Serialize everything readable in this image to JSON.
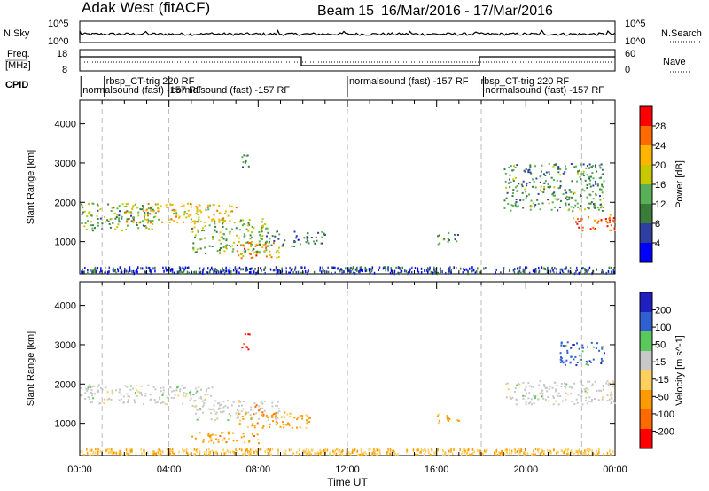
{
  "header": {
    "title": "Adak West (fitACF)",
    "beam": "Beam 15",
    "date_range": "16/Mar/2016 - 17/Mar/2016"
  },
  "nsky_panel": {
    "left_label": "N.Sky",
    "right_label": "N.Search",
    "left_ticks": [
      "10^5",
      "10^0"
    ],
    "right_ticks": [
      "10^5",
      "10^0"
    ]
  },
  "freq_panel": {
    "left_label_line1": "Freq.",
    "left_label_line2": "[MHz]",
    "left_ticks": [
      "18",
      "8"
    ],
    "right_label": "Nave",
    "right_ticks": [
      "60",
      "0"
    ]
  },
  "cpid": {
    "label": "CPID",
    "segments": [
      {
        "text": "rbsp_CT-trig 220 RF",
        "row": 1,
        "start_h": 1.1
      },
      {
        "text": "normalsound (fast) -157 RF",
        "row": 2,
        "start_h": 0.05
      },
      {
        "text": "normalsound (fast) -157 RF",
        "row": 2,
        "start_h": 4.0
      },
      {
        "text": "normalsound (fast) -157 RF",
        "row": 1,
        "start_h": 12.0
      },
      {
        "text": "rbsp_CT-trig 220 RF",
        "row": 1,
        "start_h": 17.9
      },
      {
        "text": "normalsound (fast) -157 RF",
        "row": 2,
        "start_h": 18.1
      }
    ]
  },
  "chart_data": [
    {
      "type": "heatmap",
      "name": "power",
      "xlabel": "Time UT",
      "ylabel": "Slant Range [km]",
      "xlim": [
        0,
        24
      ],
      "ylim": [
        180,
        4600
      ],
      "x_ticks": [
        "00:00",
        "04:00",
        "08:00",
        "12:00",
        "16:00",
        "20:00",
        "00:00"
      ],
      "y_ticks": [
        1000,
        2000,
        3000,
        4000
      ],
      "colorbar": {
        "label": "Power [dB]",
        "ticks": [
          4,
          8,
          12,
          16,
          20,
          24,
          28
        ],
        "range": [
          0,
          30
        ],
        "colors": [
          "#0000ff",
          "#2e3fa0",
          "#3a7d3a",
          "#58b058",
          "#c8c800",
          "#ffb400",
          "#ff6a00",
          "#ff0000"
        ]
      },
      "echo_regions": [
        {
          "t0": 0.0,
          "t1": 3.5,
          "r0": 1300,
          "r1": 2000,
          "power": 12
        },
        {
          "t0": 2.0,
          "t1": 7.0,
          "r0": 1500,
          "r1": 2000,
          "power": 20
        },
        {
          "t0": 5.0,
          "t1": 8.5,
          "r0": 700,
          "r1": 1600,
          "power": 14
        },
        {
          "t0": 7.0,
          "t1": 9.0,
          "r0": 600,
          "r1": 1000,
          "power": 22
        },
        {
          "t0": 8.0,
          "t1": 11.0,
          "r0": 900,
          "r1": 1300,
          "power": 8
        },
        {
          "t0": 7.2,
          "t1": 7.6,
          "r0": 2800,
          "r1": 3300,
          "power": 8
        },
        {
          "t0": 16.0,
          "t1": 17.0,
          "r0": 950,
          "r1": 1250,
          "power": 10
        },
        {
          "t0": 19.0,
          "t1": 23.5,
          "r0": 1800,
          "r1": 3000,
          "power": 10
        },
        {
          "t0": 22.0,
          "t1": 24.0,
          "r0": 1300,
          "r1": 1700,
          "power": 26
        }
      ]
    },
    {
      "type": "heatmap",
      "name": "velocity",
      "xlabel": "Time UT",
      "ylabel": "Slant Range [km]",
      "xlim": [
        0,
        24
      ],
      "ylim": [
        180,
        4600
      ],
      "x_ticks": [
        "00:00",
        "04:00",
        "08:00",
        "12:00",
        "16:00",
        "20:00",
        "00:00"
      ],
      "y_ticks": [
        1000,
        2000,
        3000,
        4000
      ],
      "colorbar": {
        "label": "Velocity [m s^-1]",
        "ticks": [
          "-200",
          "-100",
          "-50",
          "-15",
          "15",
          "50",
          "100",
          "200"
        ],
        "colors": [
          "#ff0000",
          "#ff6a00",
          "#ff9a00",
          "#ffd060",
          "#c8c8c8",
          "#5ac85a",
          "#3060d0",
          "#2020c0"
        ]
      },
      "echo_regions": [
        {
          "t0": 0.0,
          "t1": 6.0,
          "r0": 1500,
          "r1": 2000,
          "velocity": 0
        },
        {
          "t0": 5.0,
          "t1": 9.0,
          "r0": 1100,
          "r1": 1600,
          "velocity": 0
        },
        {
          "t0": 7.0,
          "t1": 10.5,
          "r0": 900,
          "r1": 1300,
          "velocity": -40
        },
        {
          "t0": 7.8,
          "t1": 8.3,
          "r0": 1300,
          "r1": 1500,
          "velocity": -120
        },
        {
          "t0": 5.0,
          "t1": 8.0,
          "r0": 500,
          "r1": 800,
          "velocity": -50
        },
        {
          "t0": 7.2,
          "t1": 7.6,
          "r0": 2900,
          "r1": 3300,
          "velocity": -180
        },
        {
          "t0": 16.0,
          "t1": 17.0,
          "r0": 1000,
          "r1": 1250,
          "velocity": -40
        },
        {
          "t0": 19.0,
          "t1": 24.0,
          "r0": 1500,
          "r1": 2100,
          "velocity": 0
        },
        {
          "t0": 21.5,
          "t1": 23.5,
          "r0": 2500,
          "r1": 3100,
          "velocity": 100
        }
      ]
    }
  ]
}
